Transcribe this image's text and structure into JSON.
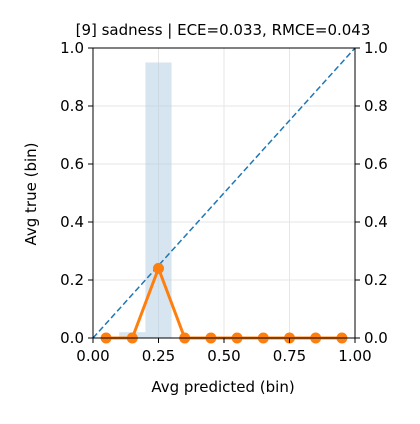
{
  "chart_data": {
    "type": "line",
    "title": "[9] sadness | ECE=0.033, RMCE=0.043",
    "xlabel": "Avg predicted (bin)",
    "ylabel": "Avg true (bin)",
    "xlim": [
      0.0,
      1.0
    ],
    "ylim": [
      0.0,
      1.0
    ],
    "right_ylim": [
      0.0,
      1.0
    ],
    "x_ticks": [
      "0.00",
      "0.25",
      "0.50",
      "0.75",
      "1.00"
    ],
    "y_ticks": [
      "0.0",
      "0.2",
      "0.4",
      "0.6",
      "0.8",
      "1.0"
    ],
    "right_y_ticks": [
      "0.0",
      "0.2",
      "0.4",
      "0.6",
      "0.8",
      "1.0"
    ],
    "grid": true,
    "series": [
      {
        "kind": "line-markers",
        "color": "#ff7f0e",
        "x": [
          0.05,
          0.15,
          0.25,
          0.35,
          0.45,
          0.55,
          0.65,
          0.75,
          0.85,
          0.95
        ],
        "y": [
          0.0,
          0.0,
          0.24,
          0.0,
          0.0,
          0.0,
          0.0,
          0.0,
          0.0,
          0.0
        ]
      },
      {
        "kind": "diagonal-reference",
        "color": "#1f77b4",
        "style": "dashed",
        "x": [
          0.0,
          1.0
        ],
        "y": [
          0.0,
          1.0
        ]
      },
      {
        "kind": "histogram",
        "axis": "right",
        "color": "#b4d0e4",
        "bins": [
          {
            "x0": 0.1,
            "x1": 0.2,
            "value": 0.02
          },
          {
            "x0": 0.2,
            "x1": 0.3,
            "value": 0.95
          }
        ]
      }
    ]
  }
}
